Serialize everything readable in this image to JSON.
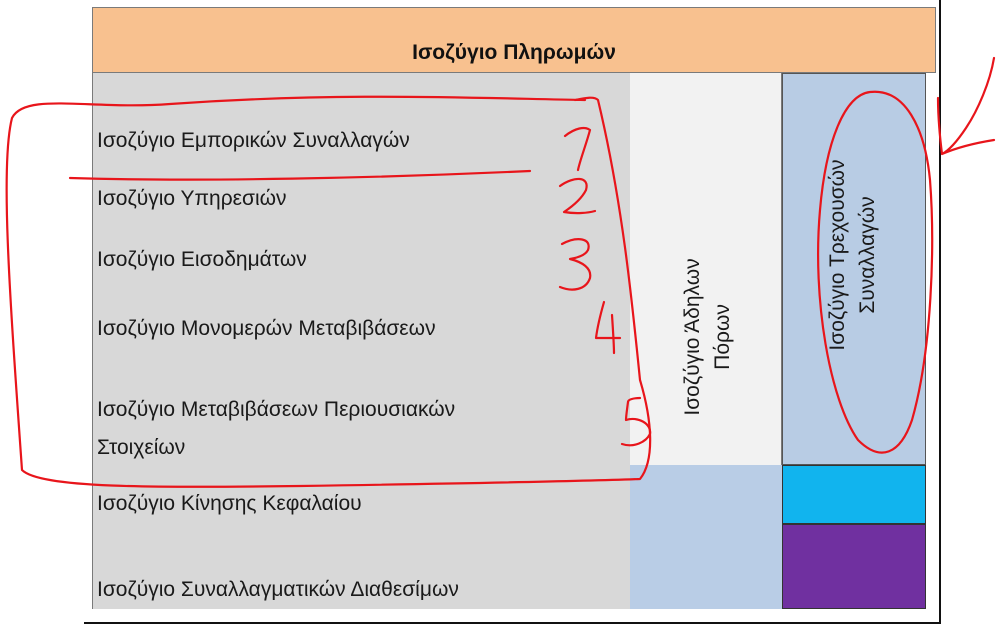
{
  "diagram": {
    "title": "Ισοζύγιο Πληρωμών",
    "items": [
      {
        "label": "Ισοζύγιο Εμπορικών Συναλλαγών"
      },
      {
        "label": "Ισοζύγιο Υπηρεσιών"
      },
      {
        "label": "Ισοζύγιο Εισοδημάτων"
      },
      {
        "label": "Ισοζύγιο Μονομερών Μεταβιβάσεων"
      },
      {
        "label_line1": "Ισοζύγιο Μεταβιβάσεων Περιουσιακών",
        "label_line2": "Στοιχείων"
      },
      {
        "label": "Ισοζύγιο  Κίνησης Κεφαλαίου"
      },
      {
        "label": "Ισοζύγιο Συναλλαγματικών Διαθεσίμων"
      }
    ],
    "invisible_col": {
      "line1": "Ισοζύγιο Άδηλων",
      "line2": "Πόρων"
    },
    "current_col": {
      "line1": "Ισοζύγιο Τρεχουσών",
      "line2": "Συναλλαγών"
    },
    "colors": {
      "header": "#f8c18f",
      "list_bg": "#d8d8d8",
      "invisible_bg": "#f2f2f2",
      "light_blue": "#b9cde6",
      "current_bg": "#b8cce4",
      "cyan": "#11b4ee",
      "purple": "#7030a0",
      "annotation_red": "#e8151b"
    }
  }
}
